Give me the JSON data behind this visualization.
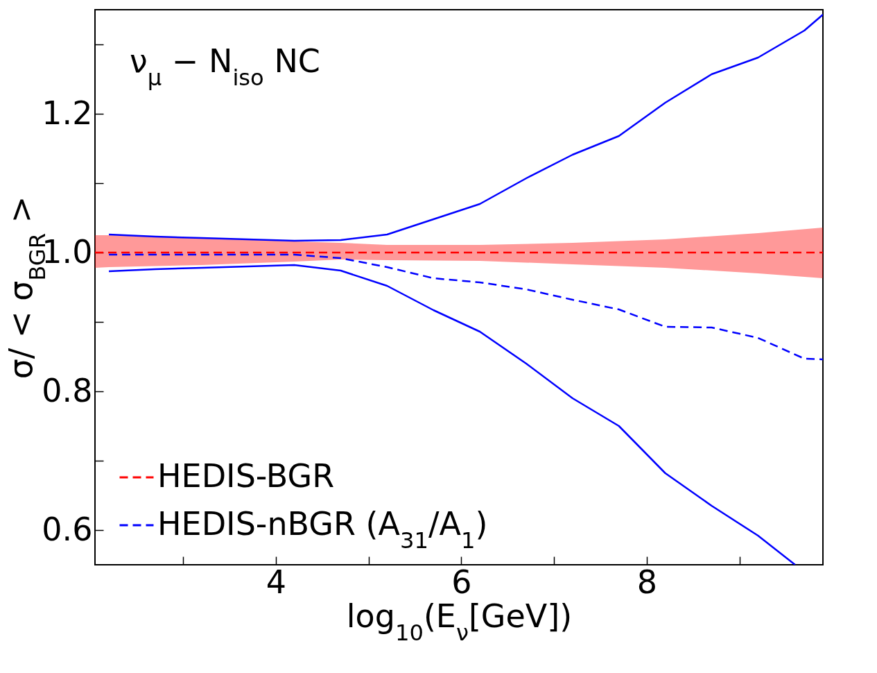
{
  "chart_data": {
    "type": "line",
    "title": "ν$_{μ}$ − N$_{iso}$ NC",
    "xlabel": "log$_{10}$(E$_{ν}$[GeV])",
    "ylabel": "σ/ < σ$_{BGR}$ >",
    "xlim": [
      2.05,
      9.9
    ],
    "ylim": [
      0.55,
      1.35
    ],
    "xticks": [
      {
        "value": 3,
        "label": null
      },
      4,
      {
        "value": 5,
        "label": null
      },
      6,
      {
        "value": 7,
        "label": null
      },
      8,
      {
        "value": 9,
        "label": null
      }
    ],
    "yticks": [
      0.6,
      {
        "value": 0.7,
        "label": null
      },
      0.8,
      {
        "value": 0.9,
        "label": null
      },
      {
        "value": 1,
        "label": "1.0"
      },
      {
        "value": 1.1,
        "label": null
      },
      1.2,
      {
        "value": 1.3,
        "label": null
      }
    ],
    "grid": false,
    "legend": "bottom left",
    "marker": "none",
    "series": [
      {
        "name": "HEDIS-BGR",
        "color": "#ff0000",
        "line_style": "dashed",
        "x": [
          2.05,
          2.2,
          3.2,
          4.2,
          4.7,
          5.2,
          6.2,
          7.2,
          8.2,
          9.2,
          9.9
        ],
        "values": [
          1,
          1,
          1,
          1,
          1,
          1,
          1,
          1,
          1,
          1,
          1
        ],
        "lower": [
          0.978,
          0.979,
          0.982,
          0.987,
          0.99,
          0.989,
          0.988,
          0.983,
          0.978,
          0.97,
          0.963
        ],
        "upper": [
          1.025,
          1.025,
          1.021,
          1.016,
          1.014,
          1.011,
          1.011,
          1.014,
          1.019,
          1.028,
          1.036
        ]
      },
      {
        "name": "HEDIS-nBGR (A$_{31}$/A$_{1}$)",
        "color": "#0000ff",
        "line_style": "dashed",
        "x": [
          2.2,
          2.7,
          3.2,
          3.7,
          4.2,
          4.7,
          5.2,
          5.7,
          6.2,
          6.7,
          7.2,
          7.7,
          8.2,
          8.7,
          9.2,
          9.7,
          9.9
        ],
        "values": [
          0.997,
          0.997,
          0.997,
          0.997,
          0.997,
          0.992,
          0.979,
          0.963,
          0.957,
          0.947,
          0.932,
          0.918,
          0.893,
          0.892,
          0.877,
          0.847,
          0.846
        ]
      },
      {
        "color": "#0000ff",
        "line_style": "solid",
        "x": [
          2.2,
          2.7,
          3.2,
          3.7,
          4.2,
          4.7,
          5.2,
          5.7,
          6.2,
          6.7,
          7.2,
          7.7,
          8.2,
          8.7,
          9.2,
          9.7,
          9.9
        ],
        "values": [
          1.026,
          1.023,
          1.021,
          1.019,
          1.017,
          1.018,
          1.026,
          1.048,
          1.07,
          1.107,
          1.141,
          1.168,
          1.216,
          1.257,
          1.281,
          1.32,
          1.343
        ]
      },
      {
        "color": "#0000ff",
        "line_style": "solid",
        "x": [
          2.2,
          2.7,
          3.2,
          3.7,
          4.2,
          4.7,
          5.2,
          5.7,
          6.2,
          6.7,
          7.2,
          7.7,
          8.2,
          8.7,
          9.2,
          9.6
        ],
        "values": [
          0.973,
          0.976,
          0.978,
          0.98,
          0.982,
          0.974,
          0.952,
          0.917,
          0.886,
          0.84,
          0.79,
          0.75,
          0.682,
          0.635,
          0.592,
          0.55
        ]
      }
    ]
  }
}
